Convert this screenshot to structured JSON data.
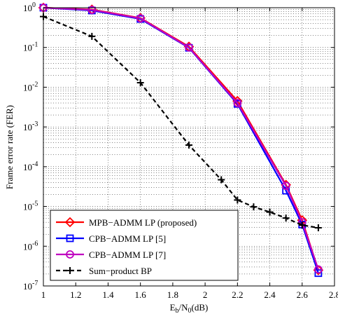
{
  "chart_data": {
    "type": "line",
    "xlabel_main": "E",
    "xlabel_sub1": "b",
    "xlabel_mid": "/N",
    "xlabel_sub2": "0",
    "xlabel_tail": "(dB)",
    "ylabel": "Frame error rate (FER)",
    "xlim": [
      1,
      2.8
    ],
    "ylim_exp": [
      -7,
      0
    ],
    "x_ticks": [
      "1",
      "1.2",
      "1.4",
      "1.6",
      "1.8",
      "2",
      "2.2",
      "2.4",
      "2.6",
      "2.8"
    ],
    "y_tick_base": "10",
    "y_tick_exps": [
      "-7",
      "-6",
      "-5",
      "-4",
      "-3",
      "-2",
      "-1",
      "0"
    ],
    "log_y": true,
    "grid": true,
    "legend_position": "bottom-left",
    "series": [
      {
        "name": "MPB−ADMM LP (proposed)",
        "color": "#ff0000",
        "marker": "diamond",
        "dash": "solid",
        "x": [
          1.0,
          1.3,
          1.6,
          1.9,
          2.2,
          2.5,
          2.6,
          2.7
        ],
        "y": [
          1.0,
          0.9,
          0.55,
          0.105,
          0.0045,
          3.5e-05,
          4.5e-06,
          2.5e-07
        ]
      },
      {
        "name": "CPB−ADMM LP [5]",
        "color": "#0000ff",
        "marker": "square",
        "dash": "solid",
        "x": [
          1.0,
          1.3,
          1.6,
          1.9,
          2.2,
          2.5,
          2.6,
          2.7
        ],
        "y": [
          1.0,
          0.85,
          0.52,
          0.098,
          0.0038,
          2.5e-05,
          3.5e-06,
          2.1e-07
        ]
      },
      {
        "name": "CPB−ADMM LP [7]",
        "color": "#bf00bf",
        "marker": "circle",
        "dash": "solid",
        "x": [
          1.0,
          1.3,
          1.6,
          1.9,
          2.2,
          2.5,
          2.6,
          2.7
        ],
        "y": [
          1.0,
          0.88,
          0.54,
          0.1,
          0.004,
          3.3e-05,
          4e-06,
          2.6e-07
        ]
      },
      {
        "name": "Sum−product BP",
        "color": "#000000",
        "marker": "plus",
        "dash": "dashed",
        "x": [
          1.0,
          1.3,
          1.6,
          1.9,
          2.1,
          2.2,
          2.3,
          2.4,
          2.5,
          2.6,
          2.7
        ],
        "y": [
          0.6,
          0.19,
          0.013,
          0.00035,
          4.7e-05,
          1.45e-05,
          9.8e-06,
          7.2e-06,
          5.1e-06,
          3.4e-06,
          2.9e-06
        ]
      }
    ]
  }
}
